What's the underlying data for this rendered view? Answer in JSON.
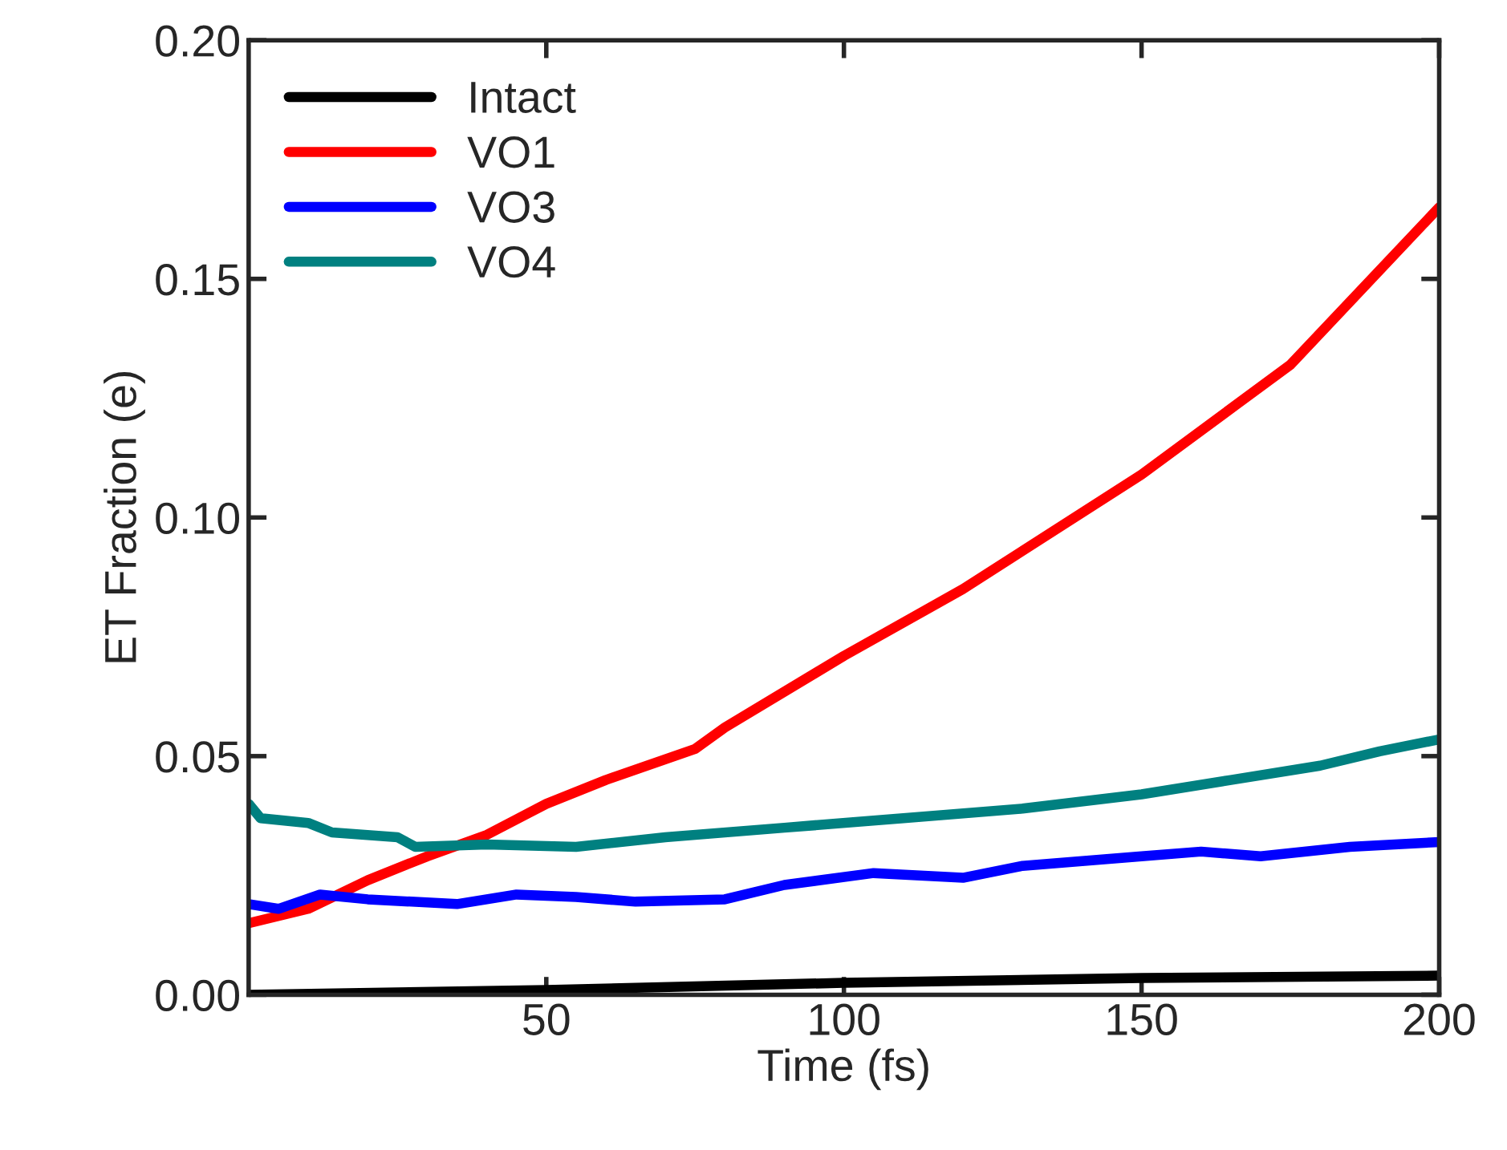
{
  "chart_data": {
    "type": "line",
    "xlabel": "Time (fs)",
    "ylabel": "ET Fraction (e)",
    "xlim": [
      0,
      200
    ],
    "xticks": [
      50,
      100,
      150,
      200
    ],
    "ylim": [
      0,
      0.2
    ],
    "yticks": [
      {
        "value": 0,
        "label": "0.00"
      },
      {
        "value": 0.05,
        "label": "0.05"
      },
      {
        "value": 0.1,
        "label": "0.10"
      },
      {
        "value": 0.15,
        "label": "0.15"
      },
      {
        "value": 0.2,
        "label": "0.20"
      }
    ],
    "legend": "top left",
    "grid": false,
    "line_style": "solid",
    "marker": "none",
    "series": [
      {
        "name": "Intact",
        "color": "#000000",
        "x": [
          0,
          50,
          100,
          150,
          200
        ],
        "values": [
          0.0,
          0.001,
          0.0025,
          0.0035,
          0.004
        ]
      },
      {
        "name": "VO1",
        "color": "#ff0000",
        "x": [
          0,
          10,
          20,
          30,
          40,
          50,
          60,
          75,
          80,
          100,
          120,
          150,
          175,
          200
        ],
        "values": [
          0.015,
          0.018,
          0.024,
          0.029,
          0.0335,
          0.04,
          0.045,
          0.0515,
          0.056,
          0.071,
          0.085,
          0.109,
          0.132,
          0.165
        ]
      },
      {
        "name": "VO3",
        "color": "#0000ff",
        "x": [
          0,
          5,
          12,
          20,
          35,
          45,
          55,
          65,
          80,
          90,
          105,
          120,
          130,
          150,
          160,
          170,
          185,
          200
        ],
        "values": [
          0.019,
          0.018,
          0.021,
          0.02,
          0.019,
          0.021,
          0.0205,
          0.0195,
          0.02,
          0.023,
          0.0255,
          0.0245,
          0.027,
          0.029,
          0.03,
          0.029,
          0.031,
          0.032
        ]
      },
      {
        "name": "VO4",
        "color": "#008080",
        "x": [
          0,
          2,
          10,
          14,
          25,
          28,
          40,
          55,
          70,
          90,
          110,
          130,
          150,
          165,
          180,
          190,
          200
        ],
        "values": [
          0.04,
          0.037,
          0.036,
          0.034,
          0.033,
          0.031,
          0.0315,
          0.031,
          0.033,
          0.035,
          0.037,
          0.039,
          0.042,
          0.045,
          0.048,
          0.051,
          0.0535
        ]
      }
    ]
  }
}
